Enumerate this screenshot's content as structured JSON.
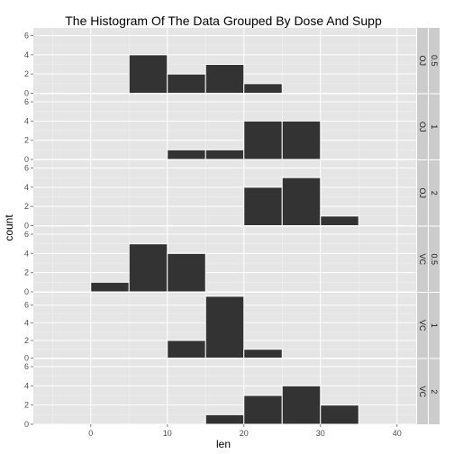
{
  "chart_data": {
    "type": "bar",
    "title": "The Histogram Of The Data Grouped By Dose And Supp",
    "xlabel": "len",
    "ylabel": "count",
    "binwidth": 5,
    "xlim": [
      -7.5,
      42.5
    ],
    "x_ticks": [
      "0",
      "10",
      "20",
      "30",
      "40"
    ],
    "x_tick_values": [
      0,
      10,
      20,
      30,
      40
    ],
    "grid": true,
    "colors": {
      "panel_bg": "#e5e5e5",
      "grid_major": "#ffffff",
      "grid_minor": "#f2f2f2",
      "bar_fill": "#333333",
      "bar_outline": "#ffffff",
      "strip_bg": "#cccccc"
    },
    "panels": [
      {
        "supp": "OJ",
        "dose": "0.5",
        "ylim": [
          0,
          6.8
        ],
        "y_ticks": [
          "0",
          "2",
          "4",
          "6"
        ],
        "y_tick_values": [
          0,
          2,
          4,
          6
        ],
        "bins": [
          {
            "x": 7.5,
            "count": 4
          },
          {
            "x": 12.5,
            "count": 2
          },
          {
            "x": 17.5,
            "count": 3
          },
          {
            "x": 22.5,
            "count": 1
          }
        ]
      },
      {
        "supp": "OJ",
        "dose": "1",
        "ylim": [
          0,
          6.8
        ],
        "y_ticks": [
          "0",
          "2",
          "4",
          "6"
        ],
        "y_tick_values": [
          0,
          2,
          4,
          6
        ],
        "bins": [
          {
            "x": 12.5,
            "count": 1
          },
          {
            "x": 17.5,
            "count": 1
          },
          {
            "x": 22.5,
            "count": 4
          },
          {
            "x": 27.5,
            "count": 4
          }
        ]
      },
      {
        "supp": "OJ",
        "dose": "2",
        "ylim": [
          0,
          6.8
        ],
        "y_ticks": [
          "0",
          "2",
          "4",
          "6"
        ],
        "y_tick_values": [
          0,
          2,
          4,
          6
        ],
        "bins": [
          {
            "x": 22.5,
            "count": 4
          },
          {
            "x": 27.5,
            "count": 5
          },
          {
            "x": 32.5,
            "count": 1
          }
        ]
      },
      {
        "supp": "VC",
        "dose": "0.5",
        "ylim": [
          0,
          6.8
        ],
        "y_ticks": [
          "0",
          "2",
          "4",
          "6"
        ],
        "y_tick_values": [
          0,
          2,
          4,
          6
        ],
        "bins": [
          {
            "x": 2.5,
            "count": 1
          },
          {
            "x": 7.5,
            "count": 5
          },
          {
            "x": 12.5,
            "count": 4
          }
        ]
      },
      {
        "supp": "VC",
        "dose": "1",
        "ylim": [
          0,
          7.4
        ],
        "y_ticks": [
          "0",
          "2",
          "4",
          "6"
        ],
        "y_tick_values": [
          0,
          2,
          4,
          6
        ],
        "bins": [
          {
            "x": 12.5,
            "count": 2
          },
          {
            "x": 17.5,
            "count": 7
          },
          {
            "x": 22.5,
            "count": 1
          }
        ]
      },
      {
        "supp": "VC",
        "dose": "2",
        "ylim": [
          0,
          6.8
        ],
        "y_ticks": [
          "0",
          "2",
          "4",
          "6"
        ],
        "y_tick_values": [
          0,
          2,
          4,
          6
        ],
        "bins": [
          {
            "x": 17.5,
            "count": 1
          },
          {
            "x": 22.5,
            "count": 3
          },
          {
            "x": 27.5,
            "count": 4
          },
          {
            "x": 32.5,
            "count": 2
          }
        ]
      }
    ]
  }
}
